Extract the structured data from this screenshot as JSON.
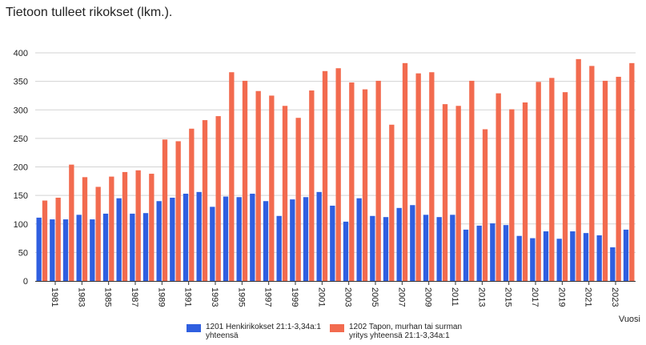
{
  "title": "Tietoon tulleet rikokset (lkm.).",
  "chart_data": {
    "type": "bar",
    "title": "Tietoon tulleet rikokset (lkm.).",
    "xlabel": "Vuosi",
    "ylabel": "",
    "ylim": [
      0,
      400
    ],
    "yticks": [
      0,
      50,
      100,
      150,
      200,
      250,
      300,
      350,
      400
    ],
    "grid": true,
    "legend_position": "bottom",
    "categories": [
      "1980",
      "1981",
      "1982",
      "1983",
      "1984",
      "1985",
      "1986",
      "1987",
      "1988",
      "1989",
      "1990",
      "1991",
      "1992",
      "1993",
      "1994",
      "1995",
      "1996",
      "1997",
      "1998",
      "1999",
      "2000",
      "2001",
      "2002",
      "2003",
      "2004",
      "2005",
      "2006",
      "2007",
      "2008",
      "2009",
      "2010",
      "2011",
      "2012",
      "2013",
      "2014",
      "2015",
      "2016",
      "2017",
      "2018",
      "2019",
      "2020",
      "2021",
      "2022",
      "2023",
      "2024"
    ],
    "tick_labels": [
      "1981",
      "1983",
      "1985",
      "1987",
      "1989",
      "1991",
      "1993",
      "1995",
      "1997",
      "1999",
      "2001",
      "2003",
      "2005",
      "2007",
      "2009",
      "2011",
      "2013",
      "2015",
      "2017",
      "2019",
      "2021",
      "2023"
    ],
    "series": [
      {
        "name": "1201 Henkirikokset  21:1-3,34a:1 yhteensä",
        "color": "#2f5fe0",
        "values": [
          111,
          108,
          108,
          116,
          108,
          118,
          145,
          118,
          119,
          140,
          146,
          153,
          156,
          130,
          148,
          147,
          153,
          140,
          114,
          143,
          147,
          156,
          132,
          104,
          145,
          114,
          112,
          128,
          133,
          116,
          112,
          116,
          90,
          97,
          101,
          98,
          79,
          75,
          87,
          74,
          87,
          84,
          80,
          59,
          90
        ]
      },
      {
        "name": "1202 Tapon, murhan tai surman yritys yhteensä 21:1-3,34a:1",
        "color": "#f26b4f",
        "values": [
          141,
          146,
          204,
          182,
          165,
          183,
          191,
          194,
          188,
          248,
          245,
          267,
          282,
          289,
          366,
          351,
          333,
          325,
          307,
          286,
          334,
          368,
          373,
          348,
          336,
          351,
          274,
          382,
          364,
          366,
          310,
          307,
          351,
          266,
          329,
          301,
          313,
          349,
          356,
          331,
          389,
          377,
          351,
          358,
          382
        ]
      }
    ]
  }
}
